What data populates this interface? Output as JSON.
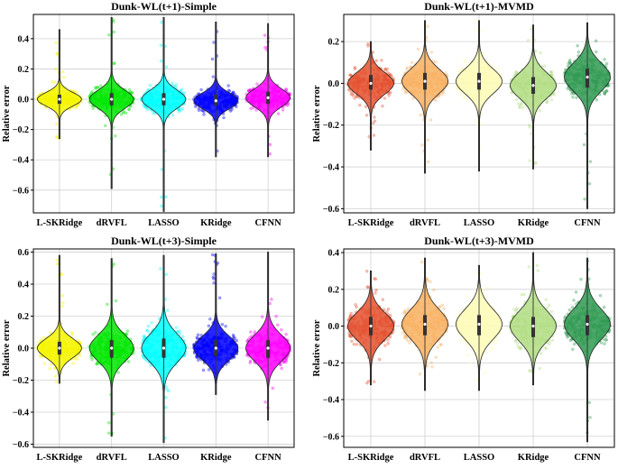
{
  "chart_data": [
    {
      "type": "violin",
      "title": "Dunk-WL(t+1)-Simple",
      "xlabel": "",
      "ylabel": "Relative error",
      "ylim": [
        -0.75,
        0.56
      ],
      "yticks": [
        0.4,
        0.2,
        0.0,
        -0.2,
        -0.4,
        -0.6
      ],
      "ytick_labels": [
        "0.4",
        "0.2",
        "0.0",
        "−0.2",
        "−0.4",
        "−0.6"
      ],
      "grid": true,
      "categories": [
        "L-SKRidge",
        "dRVFL",
        "LASSO",
        "KRidge",
        "CFNN"
      ],
      "colors": [
        "#f5f500",
        "#00e600",
        "#00ffff",
        "#0000ff",
        "#ff00ff"
      ],
      "series": [
        {
          "name": "L-SKRidge",
          "min": -0.26,
          "max": 0.46,
          "q1": -0.03,
          "median": 0.0,
          "q3": 0.03
        },
        {
          "name": "dRVFL",
          "min": -0.59,
          "max": 0.54,
          "q1": -0.04,
          "median": 0.0,
          "q3": 0.04
        },
        {
          "name": "LASSO",
          "min": -0.74,
          "max": 0.54,
          "q1": -0.04,
          "median": 0.0,
          "q3": 0.04
        },
        {
          "name": "KRidge",
          "min": -0.38,
          "max": 0.51,
          "q1": -0.04,
          "median": -0.01,
          "q3": 0.03
        },
        {
          "name": "CFNN",
          "min": -0.38,
          "max": 0.5,
          "q1": -0.03,
          "median": 0.01,
          "q3": 0.05
        }
      ]
    },
    {
      "type": "violin",
      "title": "Dunk-WL(t+1)-MVMD",
      "xlabel": "",
      "ylabel": "Relative error",
      "ylim": [
        -0.62,
        0.33
      ],
      "yticks": [
        0.2,
        0.0,
        -0.2,
        -0.4,
        -0.6
      ],
      "ytick_labels": [
        "0.2",
        "0.0",
        "−0.2",
        "−0.4",
        "−0.6"
      ],
      "grid": true,
      "categories": [
        "L-SKRidge",
        "dRVFL",
        "LASSO",
        "KRidge",
        "CFNN"
      ],
      "colors": [
        "#e4502e",
        "#f8b263",
        "#fdfcb8",
        "#b2dd84",
        "#2e9950"
      ],
      "series": [
        {
          "name": "L-SKRidge",
          "min": -0.32,
          "max": 0.2,
          "q1": -0.03,
          "median": 0.0,
          "q3": 0.04
        },
        {
          "name": "dRVFL",
          "min": -0.43,
          "max": 0.3,
          "q1": -0.03,
          "median": 0.01,
          "q3": 0.05
        },
        {
          "name": "LASSO",
          "min": -0.42,
          "max": 0.3,
          "q1": -0.03,
          "median": 0.01,
          "q3": 0.05
        },
        {
          "name": "KRidge",
          "min": -0.41,
          "max": 0.28,
          "q1": -0.05,
          "median": -0.01,
          "q3": 0.03
        },
        {
          "name": "CFNN",
          "min": -0.6,
          "max": 0.29,
          "q1": -0.02,
          "median": 0.03,
          "q3": 0.07
        }
      ]
    },
    {
      "type": "violin",
      "title": "Dunk-WL(t+3)-Simple",
      "xlabel": "",
      "ylabel": "Relative error",
      "ylim": [
        -0.62,
        0.62
      ],
      "yticks": [
        0.6,
        0.4,
        0.2,
        0.0,
        -0.2,
        -0.4,
        -0.6
      ],
      "ytick_labels": [
        "0.6",
        "0.4",
        "0.2",
        "0.0",
        "−0.2",
        "−0.4",
        "−0.6"
      ],
      "grid": true,
      "categories": [
        "L-SKRidge",
        "dRVFL",
        "LASSO",
        "KRidge",
        "CFNN"
      ],
      "colors": [
        "#f5f500",
        "#00e600",
        "#00ffff",
        "#0000ff",
        "#ff00ff"
      ],
      "series": [
        {
          "name": "L-SKRidge",
          "min": -0.22,
          "max": 0.58,
          "q1": -0.04,
          "median": 0.0,
          "q3": 0.04
        },
        {
          "name": "dRVFL",
          "min": -0.55,
          "max": 0.56,
          "q1": -0.06,
          "median": 0.0,
          "q3": 0.05
        },
        {
          "name": "LASSO",
          "min": -0.59,
          "max": 0.58,
          "q1": -0.06,
          "median": 0.0,
          "q3": 0.06
        },
        {
          "name": "KRidge",
          "min": -0.29,
          "max": 0.59,
          "q1": -0.05,
          "median": 0.0,
          "q3": 0.05
        },
        {
          "name": "CFNN",
          "min": -0.45,
          "max": 0.6,
          "q1": -0.06,
          "median": 0.0,
          "q3": 0.05
        }
      ]
    },
    {
      "type": "violin",
      "title": "Dunk-WL(t+3)-MVMD",
      "xlabel": "",
      "ylabel": "Relative error",
      "ylim": [
        -0.66,
        0.42
      ],
      "yticks": [
        0.4,
        0.2,
        0.0,
        -0.2,
        -0.4,
        -0.6
      ],
      "ytick_labels": [
        "0.4",
        "0.2",
        "0.0",
        "−0.2",
        "−0.4",
        "−0.6"
      ],
      "grid": true,
      "categories": [
        "L-SKRidge",
        "dRVFL",
        "LASSO",
        "KRidge",
        "CFNN"
      ],
      "colors": [
        "#e4502e",
        "#f8b263",
        "#fdfcb8",
        "#b2dd84",
        "#2e9950"
      ],
      "series": [
        {
          "name": "L-SKRidge",
          "min": -0.32,
          "max": 0.3,
          "q1": -0.05,
          "median": 0.0,
          "q3": 0.05
        },
        {
          "name": "dRVFL",
          "min": -0.35,
          "max": 0.37,
          "q1": -0.05,
          "median": 0.01,
          "q3": 0.06
        },
        {
          "name": "LASSO",
          "min": -0.35,
          "max": 0.33,
          "q1": -0.05,
          "median": 0.01,
          "q3": 0.06
        },
        {
          "name": "KRidge",
          "min": -0.32,
          "max": 0.4,
          "q1": -0.06,
          "median": 0.0,
          "q3": 0.05
        },
        {
          "name": "CFNN",
          "min": -0.63,
          "max": 0.37,
          "q1": -0.05,
          "median": 0.01,
          "q3": 0.06
        }
      ]
    }
  ]
}
